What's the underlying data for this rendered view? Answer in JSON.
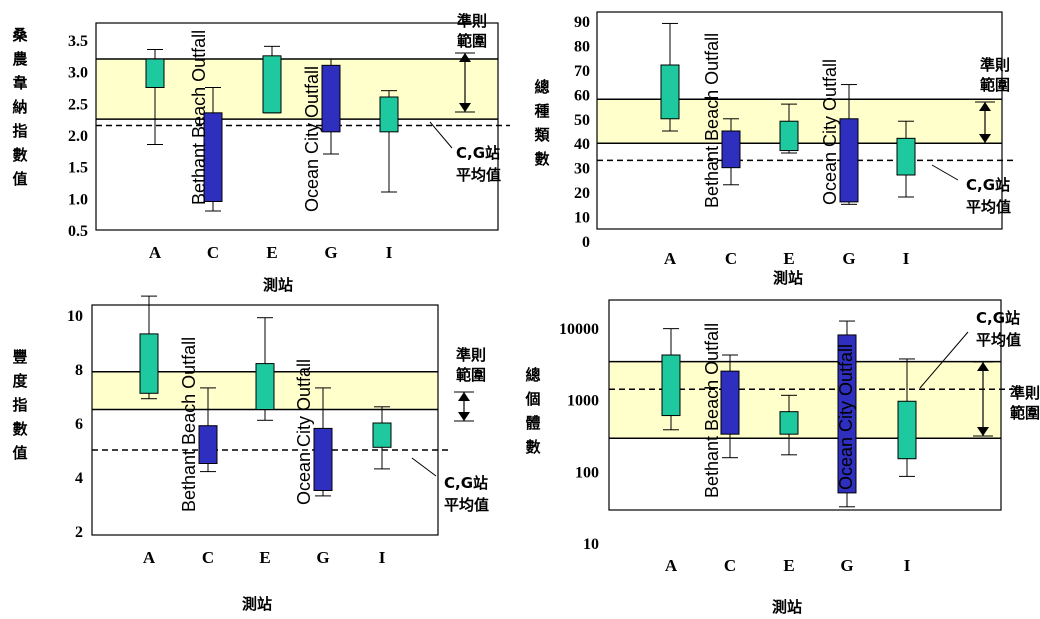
{
  "colors": {
    "band": "#ffffcc",
    "teal": "#1fc9a0",
    "navy": "#2e2ebf",
    "line": "#000000"
  },
  "chart_data": [
    {
      "type": "box",
      "ylabel": "桑農韋納指數值",
      "xlabel": "測站",
      "categories": [
        "A",
        "C",
        "E",
        "G",
        "I"
      ],
      "yticks": [
        "0.5",
        "1.0",
        "1.5",
        "2.0",
        "2.5",
        "3.0",
        "3.5"
      ],
      "ylim": [
        0.5,
        3.5
      ],
      "criteria_range": [
        2.25,
        3.2
      ],
      "cg_mean": 2.15,
      "criteria_label": "準則範圍",
      "mean_label": "C,G站平均值",
      "boxes": [
        {
          "station": "A",
          "low": 1.85,
          "q1": 2.75,
          "q3": 3.2,
          "high": 3.35,
          "color": "teal"
        },
        {
          "station": "C",
          "low": 0.8,
          "q1": 0.95,
          "q3": 2.35,
          "high": 2.75,
          "color": "navy",
          "label": "Bethant Beach Outfall"
        },
        {
          "station": "E",
          "low": 2.35,
          "q1": 2.35,
          "q3": 3.25,
          "high": 3.4,
          "color": "teal"
        },
        {
          "station": "G",
          "low": 1.7,
          "q1": 2.05,
          "q3": 3.1,
          "high": 3.2,
          "color": "navy",
          "label": "Ocean City Outfall"
        },
        {
          "station": "I",
          "low": 1.1,
          "q1": 2.05,
          "q3": 2.6,
          "high": 2.7,
          "color": "teal"
        }
      ]
    },
    {
      "type": "box",
      "ylabel": "總種類數",
      "xlabel": "測站",
      "categories": [
        "A",
        "C",
        "E",
        "G",
        "I"
      ],
      "yticks": [
        "0",
        "10",
        "20",
        "30",
        "40",
        "50",
        "60",
        "70",
        "80",
        "90"
      ],
      "ylim": [
        0,
        90
      ],
      "criteria_range": [
        40,
        58
      ],
      "cg_mean": 33,
      "criteria_label": "準則範圍",
      "mean_label": "C,G站平均值",
      "boxes": [
        {
          "station": "A",
          "low": 45,
          "q1": 50,
          "q3": 72,
          "high": 89,
          "color": "teal"
        },
        {
          "station": "C",
          "low": 23,
          "q1": 30,
          "q3": 45,
          "high": 50,
          "color": "navy",
          "label": "Bethant Beach Outfall"
        },
        {
          "station": "E",
          "low": 36,
          "q1": 37,
          "q3": 49,
          "high": 56,
          "color": "teal"
        },
        {
          "station": "G",
          "low": 15,
          "q1": 16,
          "q3": 50,
          "high": 64,
          "color": "navy",
          "label": "Ocean City Outfall"
        },
        {
          "station": "I",
          "low": 18,
          "q1": 27,
          "q3": 42,
          "high": 49,
          "color": "teal"
        }
      ]
    },
    {
      "type": "box",
      "ylabel": "豐度指數值",
      "xlabel": "測站",
      "categories": [
        "A",
        "C",
        "E",
        "G",
        "I"
      ],
      "yticks": [
        "2",
        "4",
        "6",
        "8",
        "10"
      ],
      "ylim": [
        2,
        11.5
      ],
      "criteria_range": [
        6.5,
        7.9
      ],
      "cg_mean": 5.0,
      "criteria_label": "準則範圍",
      "mean_label": "C,G站平均值",
      "boxes": [
        {
          "station": "A",
          "low": 6.9,
          "q1": 7.1,
          "q3": 9.3,
          "high": 10.7,
          "color": "teal"
        },
        {
          "station": "C",
          "low": 4.2,
          "q1": 4.5,
          "q3": 5.9,
          "high": 7.3,
          "color": "navy",
          "label": "Bethant Beach Outfall"
        },
        {
          "station": "E",
          "low": 6.1,
          "q1": 6.5,
          "q3": 8.2,
          "high": 9.9,
          "color": "teal"
        },
        {
          "station": "G",
          "low": 3.3,
          "q1": 3.5,
          "q3": 5.8,
          "high": 7.3,
          "color": "navy",
          "label": "Ocean City Outfall"
        },
        {
          "station": "I",
          "low": 4.3,
          "q1": 5.1,
          "q3": 6.0,
          "high": 6.6,
          "color": "teal"
        }
      ]
    },
    {
      "type": "box",
      "ylabel": "總個體數",
      "xlabel": "測站",
      "categories": [
        "A",
        "C",
        "E",
        "G",
        "I"
      ],
      "yticks": [
        "10",
        "100",
        "1000",
        "10000"
      ],
      "ylim": [
        10,
        20000
      ],
      "yscale": "log",
      "criteria_range": [
        290,
        3400
      ],
      "cg_mean": 1400,
      "criteria_label": "準則範圍",
      "mean_label": "C,G站平均值",
      "boxes": [
        {
          "station": "A",
          "low": 380,
          "q1": 600,
          "q3": 4200,
          "high": 9800,
          "color": "teal"
        },
        {
          "station": "C",
          "low": 155,
          "q1": 330,
          "q3": 2500,
          "high": 4200,
          "color": "navy",
          "label": "Bethant Beach Outfall"
        },
        {
          "station": "E",
          "low": 170,
          "q1": 330,
          "q3": 680,
          "high": 1150,
          "color": "teal"
        },
        {
          "station": "G",
          "low": 32,
          "q1": 50,
          "q3": 8000,
          "high": 12500,
          "color": "navy",
          "label": "Ocean City Outfall"
        },
        {
          "station": "I",
          "low": 85,
          "q1": 150,
          "q3": 950,
          "high": 3700,
          "color": "teal"
        }
      ]
    }
  ]
}
